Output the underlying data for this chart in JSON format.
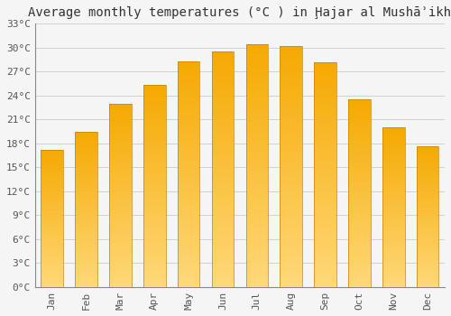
{
  "title": "Average monthly temperatures (°C ) in Ḩajar al Mushāʾikh",
  "months": [
    "Jan",
    "Feb",
    "Mar",
    "Apr",
    "May",
    "Jun",
    "Jul",
    "Aug",
    "Sep",
    "Oct",
    "Nov",
    "Dec"
  ],
  "temperatures": [
    17.2,
    19.5,
    23.0,
    25.3,
    28.3,
    29.5,
    30.4,
    30.2,
    28.2,
    23.5,
    20.0,
    17.7
  ],
  "bar_color_top": "#F5A800",
  "bar_color_bottom": "#FFD878",
  "bar_edge_color": "#C8820A",
  "ylim": [
    0,
    33
  ],
  "yticks": [
    0,
    3,
    6,
    9,
    12,
    15,
    18,
    21,
    24,
    27,
    30,
    33
  ],
  "background_color": "#f5f5f5",
  "grid_color": "#d0d0d0",
  "title_fontsize": 10,
  "tick_fontsize": 8,
  "tick_color": "#555555",
  "title_color": "#333333",
  "bar_width": 0.65
}
